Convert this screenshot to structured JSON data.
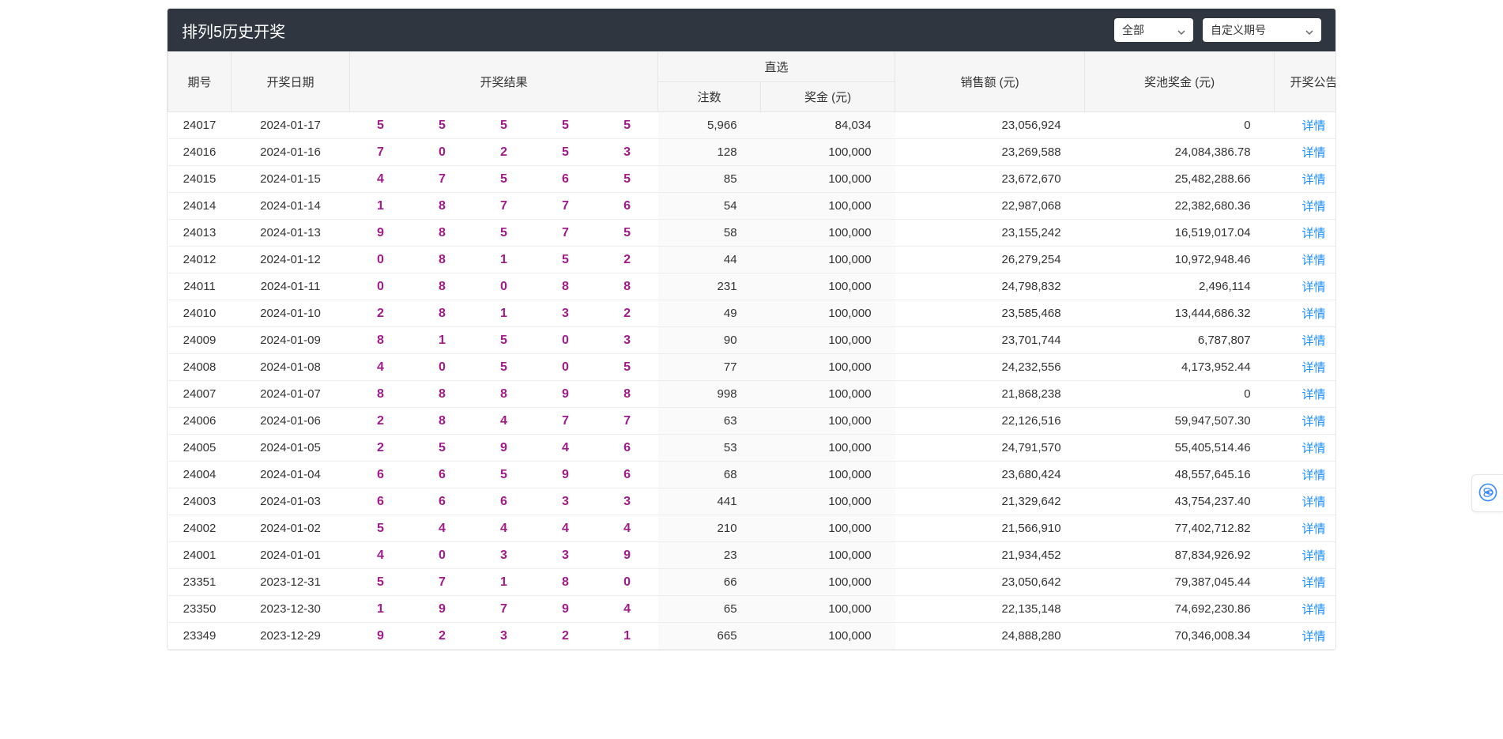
{
  "header": {
    "title": "排列5历史开奖",
    "filter_all": "全部",
    "filter_custom": "自定义期号"
  },
  "columns": {
    "issue": "期号",
    "date": "开奖日期",
    "result": "开奖结果",
    "zhixuan": "直选",
    "zhixuan_count": "注数",
    "zhixuan_bonus": "奖金 (元)",
    "sales": "销售额 (元)",
    "pool": "奖池奖金 (元)",
    "notice": "开奖公告"
  },
  "detail_label": "详情",
  "rows": [
    {
      "issue": "24017",
      "date": "2024-01-17",
      "balls": [
        "5",
        "5",
        "5",
        "5",
        "5"
      ],
      "zx_count": "5,966",
      "zx_bonus": "84,034",
      "sales": "23,056,924",
      "pool": "0"
    },
    {
      "issue": "24016",
      "date": "2024-01-16",
      "balls": [
        "7",
        "0",
        "2",
        "5",
        "3"
      ],
      "zx_count": "128",
      "zx_bonus": "100,000",
      "sales": "23,269,588",
      "pool": "24,084,386.78"
    },
    {
      "issue": "24015",
      "date": "2024-01-15",
      "balls": [
        "4",
        "7",
        "5",
        "6",
        "5"
      ],
      "zx_count": "85",
      "zx_bonus": "100,000",
      "sales": "23,672,670",
      "pool": "25,482,288.66"
    },
    {
      "issue": "24014",
      "date": "2024-01-14",
      "balls": [
        "1",
        "8",
        "7",
        "7",
        "6"
      ],
      "zx_count": "54",
      "zx_bonus": "100,000",
      "sales": "22,987,068",
      "pool": "22,382,680.36"
    },
    {
      "issue": "24013",
      "date": "2024-01-13",
      "balls": [
        "9",
        "8",
        "5",
        "7",
        "5"
      ],
      "zx_count": "58",
      "zx_bonus": "100,000",
      "sales": "23,155,242",
      "pool": "16,519,017.04"
    },
    {
      "issue": "24012",
      "date": "2024-01-12",
      "balls": [
        "0",
        "8",
        "1",
        "5",
        "2"
      ],
      "zx_count": "44",
      "zx_bonus": "100,000",
      "sales": "26,279,254",
      "pool": "10,972,948.46"
    },
    {
      "issue": "24011",
      "date": "2024-01-11",
      "balls": [
        "0",
        "8",
        "0",
        "8",
        "8"
      ],
      "zx_count": "231",
      "zx_bonus": "100,000",
      "sales": "24,798,832",
      "pool": "2,496,114"
    },
    {
      "issue": "24010",
      "date": "2024-01-10",
      "balls": [
        "2",
        "8",
        "1",
        "3",
        "2"
      ],
      "zx_count": "49",
      "zx_bonus": "100,000",
      "sales": "23,585,468",
      "pool": "13,444,686.32"
    },
    {
      "issue": "24009",
      "date": "2024-01-09",
      "balls": [
        "8",
        "1",
        "5",
        "0",
        "3"
      ],
      "zx_count": "90",
      "zx_bonus": "100,000",
      "sales": "23,701,744",
      "pool": "6,787,807"
    },
    {
      "issue": "24008",
      "date": "2024-01-08",
      "balls": [
        "4",
        "0",
        "5",
        "0",
        "5"
      ],
      "zx_count": "77",
      "zx_bonus": "100,000",
      "sales": "24,232,556",
      "pool": "4,173,952.44"
    },
    {
      "issue": "24007",
      "date": "2024-01-07",
      "balls": [
        "8",
        "8",
        "8",
        "9",
        "8"
      ],
      "zx_count": "998",
      "zx_bonus": "100,000",
      "sales": "21,868,238",
      "pool": "0"
    },
    {
      "issue": "24006",
      "date": "2024-01-06",
      "balls": [
        "2",
        "8",
        "4",
        "7",
        "7"
      ],
      "zx_count": "63",
      "zx_bonus": "100,000",
      "sales": "22,126,516",
      "pool": "59,947,507.30"
    },
    {
      "issue": "24005",
      "date": "2024-01-05",
      "balls": [
        "2",
        "5",
        "9",
        "4",
        "6"
      ],
      "zx_count": "53",
      "zx_bonus": "100,000",
      "sales": "24,791,570",
      "pool": "55,405,514.46"
    },
    {
      "issue": "24004",
      "date": "2024-01-04",
      "balls": [
        "6",
        "6",
        "5",
        "9",
        "6"
      ],
      "zx_count": "68",
      "zx_bonus": "100,000",
      "sales": "23,680,424",
      "pool": "48,557,645.16"
    },
    {
      "issue": "24003",
      "date": "2024-01-03",
      "balls": [
        "6",
        "6",
        "6",
        "3",
        "3"
      ],
      "zx_count": "441",
      "zx_bonus": "100,000",
      "sales": "21,329,642",
      "pool": "43,754,237.40"
    },
    {
      "issue": "24002",
      "date": "2024-01-02",
      "balls": [
        "5",
        "4",
        "4",
        "4",
        "4"
      ],
      "zx_count": "210",
      "zx_bonus": "100,000",
      "sales": "21,566,910",
      "pool": "77,402,712.82"
    },
    {
      "issue": "24001",
      "date": "2024-01-01",
      "balls": [
        "4",
        "0",
        "3",
        "3",
        "9"
      ],
      "zx_count": "23",
      "zx_bonus": "100,000",
      "sales": "21,934,452",
      "pool": "87,834,926.92"
    },
    {
      "issue": "23351",
      "date": "2023-12-31",
      "balls": [
        "5",
        "7",
        "1",
        "8",
        "0"
      ],
      "zx_count": "66",
      "zx_bonus": "100,000",
      "sales": "23,050,642",
      "pool": "79,387,045.44"
    },
    {
      "issue": "23350",
      "date": "2023-12-30",
      "balls": [
        "1",
        "9",
        "7",
        "9",
        "4"
      ],
      "zx_count": "65",
      "zx_bonus": "100,000",
      "sales": "22,135,148",
      "pool": "74,692,230.86"
    },
    {
      "issue": "23349",
      "date": "2023-12-29",
      "balls": [
        "9",
        "2",
        "3",
        "2",
        "1"
      ],
      "zx_count": "665",
      "zx_bonus": "100,000",
      "sales": "24,888,280",
      "pool": "70,346,008.34"
    }
  ]
}
